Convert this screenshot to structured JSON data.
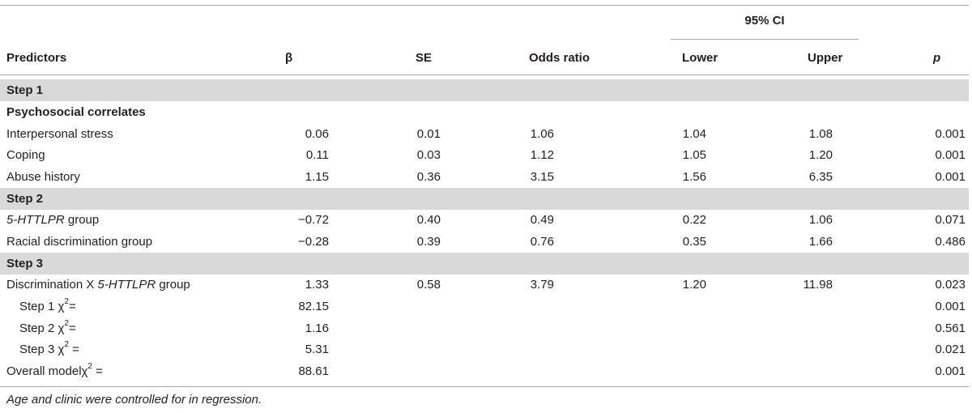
{
  "header": {
    "ci_group": "95% CI",
    "columns": [
      "Predictors",
      "β",
      "SE",
      "Odds ratio",
      "Lower",
      "Upper",
      "p"
    ]
  },
  "rows": [
    {
      "kind": "section",
      "label": "Step 1"
    },
    {
      "kind": "subheading",
      "label": "Psychosocial correlates"
    },
    {
      "kind": "data",
      "label": "Interpersonal stress",
      "beta": "0.06",
      "se": "0.01",
      "or": "1.06",
      "lower": "1.04",
      "upper": "1.08",
      "p": "0.001"
    },
    {
      "kind": "data",
      "label": "Coping",
      "beta": "0.11",
      "se": "0.03",
      "or": "1.12",
      "lower": "1.05",
      "upper": "1.20",
      "p": "0.001"
    },
    {
      "kind": "data",
      "label": "Abuse history",
      "beta": "1.15",
      "se": "0.36",
      "or": "3.15",
      "lower": "1.56",
      "upper": "6.35",
      "p": "0.001"
    },
    {
      "kind": "section",
      "label": "Step 2"
    },
    {
      "kind": "data",
      "label_italic": "5-HTTLPR",
      "label_rest": " group",
      "beta": "−0.72",
      "se": "0.40",
      "or": "0.49",
      "lower": "0.22",
      "upper": "1.06",
      "p": "0.071"
    },
    {
      "kind": "data",
      "label": "Racial discrimination group",
      "beta": "−0.28",
      "se": "0.39",
      "or": "0.76",
      "lower": "0.35",
      "upper": "1.66",
      "p": "0.486"
    },
    {
      "kind": "section",
      "label": "Step 3"
    },
    {
      "kind": "data",
      "label_pre": "Discrimination X ",
      "label_italic": "5-HTTLPR",
      "label_rest": " group",
      "beta": "1.33",
      "se": "0.58",
      "or": "3.79",
      "lower": "1.20",
      "upper": "11.98",
      "p": "0.023"
    },
    {
      "kind": "chi",
      "label": "Step 1 χ",
      "sup": "2",
      "eq": "=",
      "beta": "82.15",
      "p": "0.001"
    },
    {
      "kind": "chi",
      "label": "Step 2 χ",
      "sup": "2",
      "eq": "=",
      "beta": "1.16",
      "p": "0.561"
    },
    {
      "kind": "chi",
      "label": "Step 3 χ",
      "sup": "2",
      "eq": " =",
      "beta": "5.31",
      "p": "0.021"
    },
    {
      "kind": "chi",
      "label": "Overall modelχ",
      "sup": "2",
      "eq": " =",
      "beta": "88.61",
      "p": "0.001",
      "flush": true
    }
  ],
  "footnote": "Age and clinic were controlled for in regression."
}
